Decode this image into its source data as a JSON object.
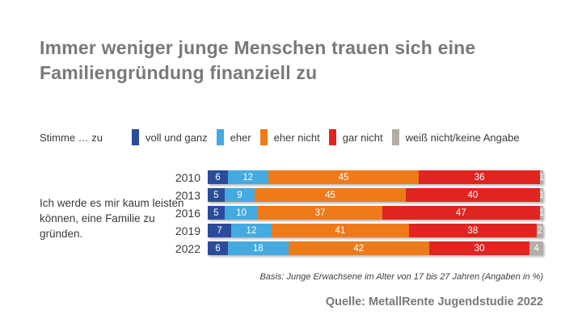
{
  "title": {
    "line1": "Immer weniger junge Menschen trauen sich eine",
    "line2": "Familiengründung finanziell zu"
  },
  "legend": {
    "prefix": "Stimme … zu",
    "items": [
      {
        "label": "voll und ganz",
        "color": "#2b4c9b"
      },
      {
        "label": "eher",
        "color": "#45aadf"
      },
      {
        "label": "eher nicht",
        "color": "#ef7a1a"
      },
      {
        "label": "gar nicht",
        "color": "#e02420"
      },
      {
        "label": "weiß nicht/keine Angabe",
        "color": "#b3ada9"
      }
    ]
  },
  "statement": "Ich werde es mir kaum leisten können, eine Familie zu gründen.",
  "chart_data": {
    "type": "bar",
    "stacked": true,
    "orientation": "horizontal",
    "title": "Immer weniger junge Menschen trauen sich eine Familiengründung finanziell zu",
    "categories": [
      "2010",
      "2013",
      "2016",
      "2019",
      "2022"
    ],
    "series": [
      {
        "name": "voll und ganz",
        "color": "#2b4c9b",
        "values": [
          6,
          5,
          5,
          7,
          6
        ]
      },
      {
        "name": "eher",
        "color": "#45aadf",
        "values": [
          12,
          9,
          10,
          12,
          18
        ]
      },
      {
        "name": "eher nicht",
        "color": "#ef7a1a",
        "values": [
          45,
          45,
          37,
          41,
          42
        ]
      },
      {
        "name": "gar nicht",
        "color": "#e02420",
        "values": [
          36,
          40,
          47,
          38,
          30
        ]
      },
      {
        "name": "weiß nicht/keine Angabe",
        "color": "#b3ada9",
        "values": [
          1,
          1,
          1,
          2,
          4
        ]
      }
    ],
    "value_unit": "%",
    "xlim": [
      0,
      100
    ],
    "legend_position": "top",
    "grid": false
  },
  "footnote": "Basis: Junge Erwachsene im Alter von 17 bis 27 Jahren (Angaben in %)",
  "source": "Quelle: MetallRente Jugendstudie 2022"
}
